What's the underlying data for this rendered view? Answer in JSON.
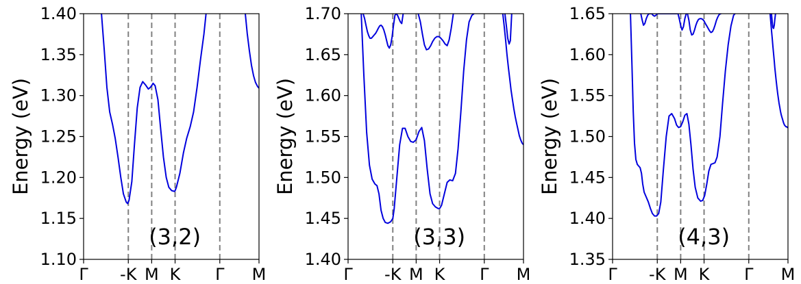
{
  "chart_data": [
    {
      "type": "line",
      "xlabel": "",
      "ylabel": "Energy (eV)",
      "annotation": "(3,2)",
      "ylim": [
        1.1,
        1.4
      ],
      "yticks": [
        "1.10",
        "1.15",
        "1.20",
        "1.25",
        "1.30",
        "1.35",
        "1.40"
      ],
      "xrange": [
        0,
        1
      ],
      "xticks": [
        {
          "label": "Γ",
          "x": 0.0
        },
        {
          "label": "-K",
          "x": 0.2549
        },
        {
          "label": "M",
          "x": 0.3882
        },
        {
          "label": "K",
          "x": 0.5216
        },
        {
          "label": "Γ",
          "x": 0.7765
        },
        {
          "label": "M",
          "x": 1.0
        }
      ],
      "dashed_lines_at": [
        0.2549,
        0.3882,
        0.5216,
        0.7765
      ],
      "line_color": "#0000dd",
      "series": [
        {
          "x": [
            0.102,
            0.118,
            0.133,
            0.149,
            0.165,
            0.18,
            0.196,
            0.212,
            0.227,
            0.243,
            0.251,
            0.259,
            0.275,
            0.29,
            0.306,
            0.322,
            0.337,
            0.353,
            0.369,
            0.38,
            0.388,
            0.396,
            0.408,
            0.424,
            0.439,
            0.455,
            0.471,
            0.486,
            0.502,
            0.518,
            0.522,
            0.529,
            0.549,
            0.569,
            0.588,
            0.608,
            0.627,
            0.647,
            0.667,
            0.686,
            0.698
          ],
          "y": [
            1.4,
            1.355,
            1.31,
            1.28,
            1.265,
            1.248,
            1.225,
            1.2,
            1.18,
            1.17,
            1.168,
            1.172,
            1.195,
            1.24,
            1.285,
            1.31,
            1.317,
            1.313,
            1.308,
            1.31,
            1.312,
            1.315,
            1.312,
            1.295,
            1.26,
            1.225,
            1.2,
            1.188,
            1.184,
            1.183,
            1.184,
            1.188,
            1.205,
            1.23,
            1.248,
            1.262,
            1.28,
            1.31,
            1.345,
            1.375,
            1.4
          ]
        },
        {
          "x": [
            0.922,
            0.933,
            0.945,
            0.957,
            0.969,
            0.98,
            0.992,
            1.0
          ],
          "y": [
            1.4,
            1.376,
            1.355,
            1.337,
            1.324,
            1.316,
            1.311,
            1.309
          ]
        }
      ]
    },
    {
      "type": "line",
      "xlabel": "",
      "ylabel": "Energy (eV)",
      "annotation": "(3,3)",
      "ylim": [
        1.4,
        1.7
      ],
      "yticks": [
        "1.40",
        "1.45",
        "1.50",
        "1.55",
        "1.60",
        "1.65",
        "1.70"
      ],
      "xrange": [
        0,
        1
      ],
      "xticks": [
        {
          "label": "Γ",
          "x": 0.0
        },
        {
          "label": "-K",
          "x": 0.2549
        },
        {
          "label": "M",
          "x": 0.3882
        },
        {
          "label": "K",
          "x": 0.5216
        },
        {
          "label": "Γ",
          "x": 0.7765
        },
        {
          "label": "M",
          "x": 1.0
        }
      ],
      "dashed_lines_at": [
        0.2549,
        0.3882,
        0.5216,
        0.7765
      ],
      "line_color": "#0000dd",
      "series": [
        {
          "x": [
            0.075,
            0.09,
            0.106,
            0.122,
            0.137,
            0.153,
            0.165,
            0.176,
            0.188,
            0.2,
            0.212,
            0.227,
            0.243,
            0.255,
            0.263,
            0.278,
            0.294,
            0.31,
            0.325,
            0.341,
            0.357,
            0.372,
            0.388,
            0.404,
            0.42,
            0.435,
            0.451,
            0.467,
            0.482,
            0.498,
            0.514,
            0.522,
            0.533,
            0.549,
            0.565,
            0.58,
            0.596,
            0.612,
            0.627,
            0.643,
            0.659,
            0.675,
            0.69,
            0.706,
            0.718
          ],
          "y": [
            1.7,
            1.625,
            1.555,
            1.515,
            1.498,
            1.492,
            1.49,
            1.48,
            1.46,
            1.45,
            1.445,
            1.444,
            1.446,
            1.45,
            1.462,
            1.5,
            1.54,
            1.56,
            1.56,
            1.55,
            1.544,
            1.543,
            1.546,
            1.556,
            1.561,
            1.545,
            1.51,
            1.48,
            1.468,
            1.464,
            1.462,
            1.462,
            1.466,
            1.48,
            1.494,
            1.497,
            1.496,
            1.505,
            1.535,
            1.58,
            1.63,
            1.668,
            1.69,
            1.698,
            1.7
          ]
        },
        {
          "x": [
            0.086,
            0.094,
            0.102,
            0.11,
            0.118,
            0.125,
            0.133,
            0.141,
            0.149,
            0.157,
            0.165,
            0.172,
            0.18,
            0.188,
            0.196,
            0.204,
            0.212,
            0.22,
            0.227,
            0.235,
            0.243,
            0.251,
            0.259,
            0.267,
            0.275,
            0.282,
            0.29,
            0.298,
            0.306,
            0.314
          ],
          "y": [
            1.7,
            1.694,
            1.686,
            1.678,
            1.673,
            1.67,
            1.67,
            1.672,
            1.674,
            1.676,
            1.679,
            1.682,
            1.685,
            1.686,
            1.684,
            1.68,
            1.674,
            1.667,
            1.661,
            1.658,
            1.662,
            1.672,
            1.686,
            1.698,
            1.7,
            1.698,
            1.694,
            1.69,
            1.688,
            1.7
          ]
        },
        {
          "x": [
            0.4,
            0.412,
            0.424,
            0.435,
            0.447,
            0.459,
            0.471,
            0.482,
            0.494,
            0.506,
            0.518,
            0.529,
            0.541,
            0.553,
            0.565,
            0.576,
            0.588,
            0.6
          ],
          "y": [
            1.7,
            1.69,
            1.675,
            1.662,
            1.656,
            1.657,
            1.661,
            1.666,
            1.67,
            1.672,
            1.672,
            1.67,
            1.667,
            1.663,
            1.661,
            1.668,
            1.682,
            1.7
          ]
        },
        {
          "x": [
            0.882,
            0.89,
            0.898,
            0.906,
            0.914,
            0.922,
            0.929,
            0.937,
            0.945,
            0.953,
            0.961,
            0.969,
            0.976,
            0.984,
            0.992,
            1.0
          ],
          "y": [
            1.7,
            1.685,
            1.668,
            1.65,
            1.634,
            1.62,
            1.607,
            1.595,
            1.584,
            1.574,
            1.566,
            1.558,
            1.551,
            1.546,
            1.542,
            1.54
          ]
        },
        {
          "x": [
            0.894,
            0.902,
            0.91,
            0.918,
            0.925,
            0.933
          ],
          "y": [
            1.7,
            1.686,
            1.67,
            1.663,
            1.667,
            1.7
          ]
        }
      ]
    },
    {
      "type": "line",
      "xlabel": "",
      "ylabel": "Energy (eV)",
      "annotation": "(4,3)",
      "ylim": [
        1.35,
        1.65
      ],
      "yticks": [
        "1.35",
        "1.40",
        "1.45",
        "1.50",
        "1.55",
        "1.60",
        "1.65"
      ],
      "xrange": [
        0,
        1
      ],
      "xticks": [
        {
          "label": "Γ",
          "x": 0.0
        },
        {
          "label": "-K",
          "x": 0.2549
        },
        {
          "label": "M",
          "x": 0.3882
        },
        {
          "label": "K",
          "x": 0.5216
        },
        {
          "label": "Γ",
          "x": 0.7765
        },
        {
          "label": "M",
          "x": 1.0
        }
      ],
      "dashed_lines_at": [
        0.2549,
        0.3882,
        0.5216,
        0.7765
      ],
      "line_color": "#0000dd",
      "series": [
        {
          "x": [
            0.102,
            0.11,
            0.118,
            0.125,
            0.133,
            0.141,
            0.149,
            0.157,
            0.165,
            0.172,
            0.18,
            0.192,
            0.204,
            0.216,
            0.227,
            0.239,
            0.251,
            0.263,
            0.275,
            0.29,
            0.306,
            0.322,
            0.337,
            0.353,
            0.365,
            0.376,
            0.388,
            0.4,
            0.412,
            0.424,
            0.435,
            0.447,
            0.459,
            0.471,
            0.486,
            0.502,
            0.514,
            0.525,
            0.537,
            0.549,
            0.561,
            0.573,
            0.584,
            0.596,
            0.612,
            0.627,
            0.643,
            0.659,
            0.675,
            0.69,
            0.698
          ],
          "y": [
            1.65,
            1.59,
            1.53,
            1.492,
            1.472,
            1.466,
            1.464,
            1.462,
            1.455,
            1.442,
            1.432,
            1.426,
            1.42,
            1.412,
            1.406,
            1.403,
            1.403,
            1.406,
            1.42,
            1.46,
            1.5,
            1.525,
            1.528,
            1.522,
            1.514,
            1.511,
            1.512,
            1.518,
            1.526,
            1.528,
            1.515,
            1.49,
            1.46,
            1.438,
            1.425,
            1.421,
            1.422,
            1.428,
            1.442,
            1.458,
            1.466,
            1.467,
            1.468,
            1.475,
            1.5,
            1.54,
            1.58,
            1.612,
            1.635,
            1.648,
            1.65
          ]
        },
        {
          "x": [
            0.161,
            0.169,
            0.176,
            0.184,
            0.192,
            0.2,
            0.208,
            0.216,
            0.224,
            0.231,
            0.239,
            0.247,
            0.255,
            0.263,
            0.271,
            0.278,
            0.286,
            0.294,
            0.302,
            0.31,
            0.318,
            0.325,
            0.333,
            0.341,
            0.349,
            0.357,
            0.365,
            0.373
          ],
          "y": [
            1.65,
            1.642,
            1.636,
            1.638,
            1.644,
            1.648,
            1.65,
            1.65,
            1.65,
            1.648,
            1.647,
            1.648,
            1.65,
            1.65,
            1.65,
            1.65,
            1.65,
            1.65,
            1.65,
            1.65,
            1.65,
            1.65,
            1.65,
            1.65,
            1.65,
            1.65,
            1.65,
            1.65
          ]
        },
        {
          "x": [
            0.373,
            0.38,
            0.388,
            0.396,
            0.404,
            0.412,
            0.42,
            0.427,
            0.435,
            0.443,
            0.451,
            0.459,
            0.467,
            0.475,
            0.482,
            0.49,
            0.498,
            0.506,
            0.514,
            0.522,
            0.529,
            0.537,
            0.545,
            0.553,
            0.561,
            0.569,
            0.576,
            0.584,
            0.592,
            0.6,
            0.608,
            0.616,
            0.62
          ],
          "y": [
            1.65,
            1.644,
            1.636,
            1.63,
            1.634,
            1.644,
            1.65,
            1.65,
            1.642,
            1.63,
            1.624,
            1.625,
            1.63,
            1.636,
            1.64,
            1.643,
            1.644,
            1.644,
            1.643,
            1.641,
            1.638,
            1.635,
            1.632,
            1.629,
            1.627,
            1.628,
            1.631,
            1.636,
            1.642,
            1.646,
            1.649,
            1.65,
            1.65
          ]
        },
        {
          "x": [
            0.898,
            0.902,
            0.906,
            0.91,
            0.914,
            0.918,
            0.922,
            0.925,
            0.929,
            0.933,
            0.937,
            0.941,
            0.945,
            0.949,
            0.953,
            0.957,
            0.961,
            0.965,
            0.969,
            0.973,
            0.976,
            0.98,
            0.984,
            0.988,
            0.992,
            0.996,
            1.0
          ],
          "y": [
            1.65,
            1.64,
            1.63,
            1.62,
            1.61,
            1.601,
            1.592,
            1.584,
            1.576,
            1.568,
            1.56,
            1.553,
            1.547,
            1.541,
            1.536,
            1.531,
            1.527,
            1.524,
            1.521,
            1.518,
            1.516,
            1.514,
            1.513,
            1.512,
            1.512,
            1.511,
            1.511
          ]
        },
        {
          "x": [
            0.906,
            0.91,
            0.914,
            0.918,
            0.922,
            0.925,
            0.929
          ],
          "y": [
            1.65,
            1.64,
            1.633,
            1.632,
            1.636,
            1.643,
            1.65
          ]
        }
      ]
    }
  ]
}
